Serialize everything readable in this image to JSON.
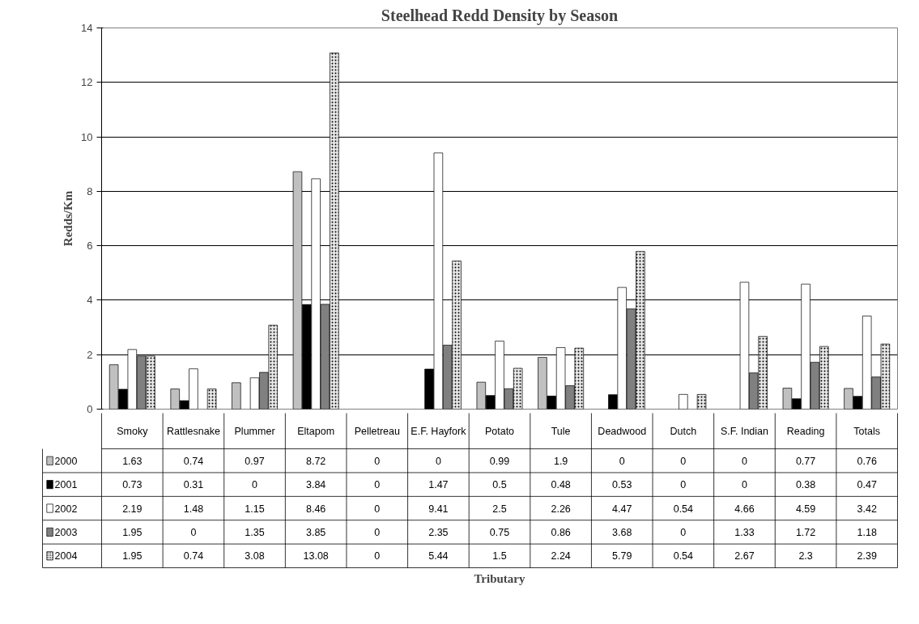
{
  "chart_data": {
    "type": "bar",
    "title": "Steelhead Redd Density by Season",
    "annotations": [
      "Tributary"
    ],
    "ylabel": "Redds/Km",
    "categories": [
      "Smoky",
      "Rattlesnake",
      "Plummer",
      "Eltapom",
      "Pelletreau",
      "E.F. Hayfork",
      "Potato",
      "Tule",
      "Deadwood",
      "Dutch",
      "S.F. Indian",
      "Reading",
      "Totals"
    ],
    "series": [
      {
        "name": "2000",
        "color": "#c0c0c0",
        "values": [
          1.63,
          0.74,
          0.97,
          8.72,
          0,
          0,
          0.99,
          1.9,
          0,
          0,
          0,
          0.77,
          0.76
        ]
      },
      {
        "name": "2001",
        "color": "#000000",
        "values": [
          0.73,
          0.31,
          0,
          3.84,
          0,
          1.47,
          0.5,
          0.48,
          0.53,
          0,
          0,
          0.38,
          0.47
        ]
      },
      {
        "name": "2002",
        "color": "#ffffff",
        "values": [
          2.19,
          1.48,
          1.15,
          8.46,
          0,
          9.41,
          2.5,
          2.26,
          4.47,
          0.54,
          4.66,
          4.59,
          3.42
        ]
      },
      {
        "name": "2003",
        "color": "#808080",
        "values": [
          1.95,
          0,
          1.35,
          3.85,
          0,
          2.35,
          0.75,
          0.86,
          3.68,
          0,
          1.33,
          1.72,
          1.18
        ]
      },
      {
        "name": "2004",
        "color": "#e8e8e8",
        "values": [
          1.95,
          0.74,
          3.08,
          13.08,
          0,
          5.44,
          1.5,
          2.24,
          5.79,
          0.54,
          2.67,
          2.3,
          2.39
        ]
      }
    ],
    "ylim": [
      0,
      14
    ],
    "yticks": [
      0,
      2,
      4,
      6,
      8,
      10,
      12,
      14
    ],
    "grid": "y",
    "legend": "bottom left",
    "data_labels": true
  }
}
